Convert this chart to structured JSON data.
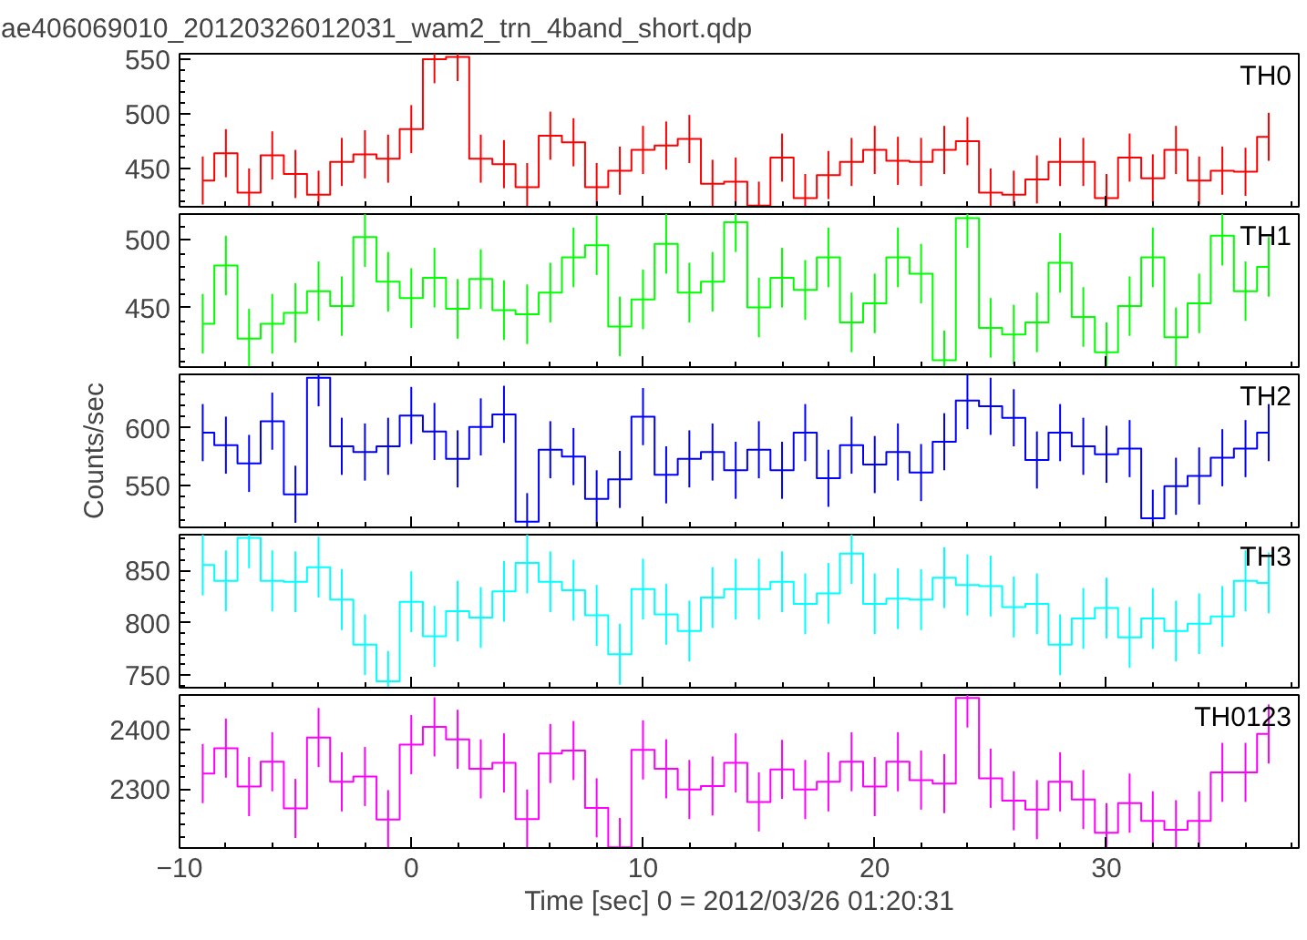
{
  "chart_data": [
    {
      "type": "step",
      "title": "ae406069010_20120326012031_wam2_trn_4band_short.qdp",
      "x": [
        -9,
        -8,
        -7,
        -6,
        -5,
        -4,
        -3,
        -2,
        -1,
        0,
        1,
        2,
        3,
        4,
        5,
        6,
        7,
        8,
        9,
        10,
        11,
        12,
        13,
        14,
        15,
        16,
        17,
        18,
        19,
        20,
        21,
        22,
        23,
        24,
        25,
        26,
        27,
        28,
        29,
        30,
        31,
        32,
        33,
        34,
        35,
        36,
        37
      ],
      "xlim": [
        -10,
        38.3
      ],
      "xticks": [
        -10,
        0,
        10,
        20,
        30
      ],
      "ylim": [
        415,
        555
      ],
      "yticks": [
        450,
        500,
        550
      ],
      "tick_labels": "y",
      "grid": false,
      "marker": "none",
      "series": [
        {
          "name": "TH0",
          "color": "#ff0000",
          "values": [
            439,
            464,
            428,
            462,
            445,
            426,
            456,
            463,
            459,
            486,
            550,
            552,
            459,
            454,
            433,
            480,
            474,
            433,
            448,
            467,
            471,
            477,
            436,
            438,
            416,
            460,
            423,
            444,
            456,
            467,
            457,
            456,
            467,
            475,
            428,
            426,
            440,
            456,
            456,
            423,
            460,
            441,
            467,
            439,
            448,
            447,
            479
          ],
          "errors": [
            22,
            22,
            22,
            22,
            22,
            22,
            22,
            22,
            22,
            22,
            22,
            22,
            22,
            22,
            22,
            22,
            22,
            22,
            22,
            22,
            22,
            22,
            22,
            22,
            22,
            22,
            22,
            22,
            22,
            22,
            22,
            22,
            22,
            22,
            22,
            22,
            22,
            22,
            22,
            22,
            22,
            22,
            22,
            22,
            22,
            22,
            22
          ]
        }
      ]
    },
    {
      "type": "step",
      "x": [
        -9,
        -8,
        -7,
        -6,
        -5,
        -4,
        -3,
        -2,
        -1,
        0,
        1,
        2,
        3,
        4,
        5,
        6,
        7,
        8,
        9,
        10,
        11,
        12,
        13,
        14,
        15,
        16,
        17,
        18,
        19,
        20,
        21,
        22,
        23,
        24,
        25,
        26,
        27,
        28,
        29,
        30,
        31,
        32,
        33,
        34,
        35,
        36,
        37
      ],
      "xlim": [
        -10,
        38.3
      ],
      "xticks": [
        -10,
        0,
        10,
        20,
        30
      ],
      "ylim": [
        406,
        519
      ],
      "yticks": [
        450,
        500
      ],
      "tick_labels": "y",
      "grid": false,
      "marker": "none",
      "series": [
        {
          "name": "TH1",
          "color": "#00ff00",
          "values": [
            438,
            481,
            427,
            438,
            446,
            462,
            451,
            502,
            469,
            457,
            472,
            449,
            471,
            448,
            445,
            461,
            487,
            496,
            436,
            456,
            497,
            461,
            469,
            513,
            450,
            472,
            463,
            487,
            439,
            453,
            487,
            475,
            411,
            516,
            435,
            430,
            439,
            483,
            443,
            417,
            451,
            487,
            428,
            453,
            503,
            462,
            480
          ],
          "errors": [
            22,
            22,
            22,
            22,
            22,
            22,
            22,
            22,
            22,
            22,
            22,
            22,
            22,
            22,
            22,
            22,
            22,
            22,
            22,
            22,
            22,
            22,
            22,
            22,
            22,
            22,
            22,
            22,
            22,
            22,
            22,
            22,
            22,
            22,
            22,
            22,
            22,
            22,
            22,
            22,
            22,
            22,
            22,
            22,
            22,
            22,
            22
          ]
        }
      ]
    },
    {
      "type": "step",
      "ylabel": "Counts/sec",
      "x": [
        -9,
        -8,
        -7,
        -6,
        -5,
        -4,
        -3,
        -2,
        -1,
        0,
        1,
        2,
        3,
        4,
        5,
        6,
        7,
        8,
        9,
        10,
        11,
        12,
        13,
        14,
        15,
        16,
        17,
        18,
        19,
        20,
        21,
        22,
        23,
        24,
        25,
        26,
        27,
        28,
        29,
        30,
        31,
        32,
        33,
        34,
        35,
        36,
        37
      ],
      "xlim": [
        -10,
        38.3
      ],
      "xticks": [
        -10,
        0,
        10,
        20,
        30
      ],
      "ylim": [
        513,
        647
      ],
      "yticks": [
        550,
        600
      ],
      "tick_labels": "y",
      "grid": false,
      "marker": "none",
      "series": [
        {
          "name": "TH2",
          "color": "#0000ff",
          "values": [
            596,
            585,
            569,
            606,
            542,
            644,
            584,
            579,
            584,
            611,
            597,
            573,
            601,
            612,
            518,
            581,
            575,
            538,
            555,
            610,
            559,
            573,
            579,
            563,
            581,
            563,
            596,
            556,
            585,
            568,
            579,
            561,
            588,
            624,
            619,
            609,
            572,
            596,
            584,
            577,
            582,
            521,
            549,
            558,
            574,
            582,
            596
          ],
          "errors": [
            25,
            25,
            25,
            25,
            25,
            25,
            25,
            25,
            25,
            25,
            25,
            25,
            25,
            25,
            25,
            25,
            25,
            25,
            25,
            25,
            25,
            25,
            25,
            25,
            25,
            25,
            25,
            25,
            25,
            25,
            25,
            25,
            25,
            25,
            25,
            25,
            25,
            25,
            25,
            25,
            25,
            25,
            25,
            25,
            25,
            25,
            25
          ]
        }
      ]
    },
    {
      "type": "step",
      "x": [
        -9,
        -8,
        -7,
        -6,
        -5,
        -4,
        -3,
        -2,
        -1,
        0,
        1,
        2,
        3,
        4,
        5,
        6,
        7,
        8,
        9,
        10,
        11,
        12,
        13,
        14,
        15,
        16,
        17,
        18,
        19,
        20,
        21,
        22,
        23,
        24,
        25,
        26,
        27,
        28,
        29,
        30,
        31,
        32,
        33,
        34,
        35,
        36,
        37
      ],
      "xlim": [
        -10,
        38.3
      ],
      "xticks": [
        -10,
        0,
        10,
        20,
        30
      ],
      "ylim": [
        738,
        884
      ],
      "yticks": [
        750,
        800,
        850
      ],
      "tick_labels": "y",
      "grid": false,
      "marker": "none",
      "series": [
        {
          "name": "TH3",
          "color": "#00ffff",
          "values": [
            855,
            840,
            881,
            840,
            839,
            853,
            822,
            779,
            744,
            820,
            787,
            811,
            805,
            830,
            857,
            839,
            831,
            807,
            770,
            832,
            808,
            792,
            824,
            832,
            832,
            839,
            818,
            828,
            866,
            818,
            823,
            822,
            843,
            836,
            835,
            815,
            818,
            779,
            804,
            814,
            786,
            804,
            792,
            799,
            806,
            840,
            838
          ],
          "errors": [
            29,
            29,
            29,
            29,
            29,
            29,
            29,
            29,
            29,
            29,
            29,
            29,
            29,
            29,
            29,
            29,
            29,
            29,
            29,
            29,
            29,
            29,
            29,
            29,
            29,
            29,
            29,
            29,
            29,
            29,
            29,
            29,
            29,
            29,
            29,
            29,
            29,
            29,
            29,
            29,
            29,
            29,
            29,
            29,
            29,
            29,
            29
          ]
        }
      ]
    },
    {
      "type": "step",
      "xlabel": "Time [sec] 0 = 2012/03/26 01:20:31",
      "x": [
        -9,
        -8,
        -7,
        -6,
        -5,
        -4,
        -3,
        -2,
        -1,
        0,
        1,
        2,
        3,
        4,
        5,
        6,
        7,
        8,
        9,
        10,
        11,
        12,
        13,
        14,
        15,
        16,
        17,
        18,
        19,
        20,
        21,
        22,
        23,
        24,
        25,
        26,
        27,
        28,
        29,
        30,
        31,
        32,
        33,
        34,
        35,
        36,
        37
      ],
      "xlim": [
        -10,
        38.3
      ],
      "xticks": [
        -10,
        0,
        10,
        20,
        30
      ],
      "ylim": [
        2200,
        2459
      ],
      "yticks": [
        2300,
        2400
      ],
      "grid": false,
      "marker": "none",
      "series": [
        {
          "name": "TH0123",
          "color": "#ff00ff",
          "values": [
            2326,
            2369,
            2304,
            2346,
            2267,
            2387,
            2312,
            2321,
            2248,
            2375,
            2405,
            2384,
            2334,
            2344,
            2249,
            2360,
            2365,
            2268,
            2201,
            2366,
            2334,
            2299,
            2305,
            2344,
            2278,
            2333,
            2299,
            2312,
            2346,
            2304,
            2346,
            2315,
            2309,
            2454,
            2318,
            2280,
            2265,
            2312,
            2282,
            2226,
            2276,
            2246,
            2231,
            2246,
            2328,
            2328,
            2393
          ],
          "errors": [
            50,
            50,
            50,
            50,
            50,
            50,
            50,
            50,
            50,
            50,
            50,
            50,
            50,
            50,
            50,
            50,
            50,
            50,
            50,
            50,
            50,
            50,
            50,
            50,
            50,
            50,
            50,
            50,
            50,
            50,
            50,
            50,
            50,
            50,
            50,
            50,
            50,
            50,
            50,
            50,
            50,
            50,
            50,
            50,
            50,
            50,
            50
          ]
        }
      ]
    }
  ]
}
